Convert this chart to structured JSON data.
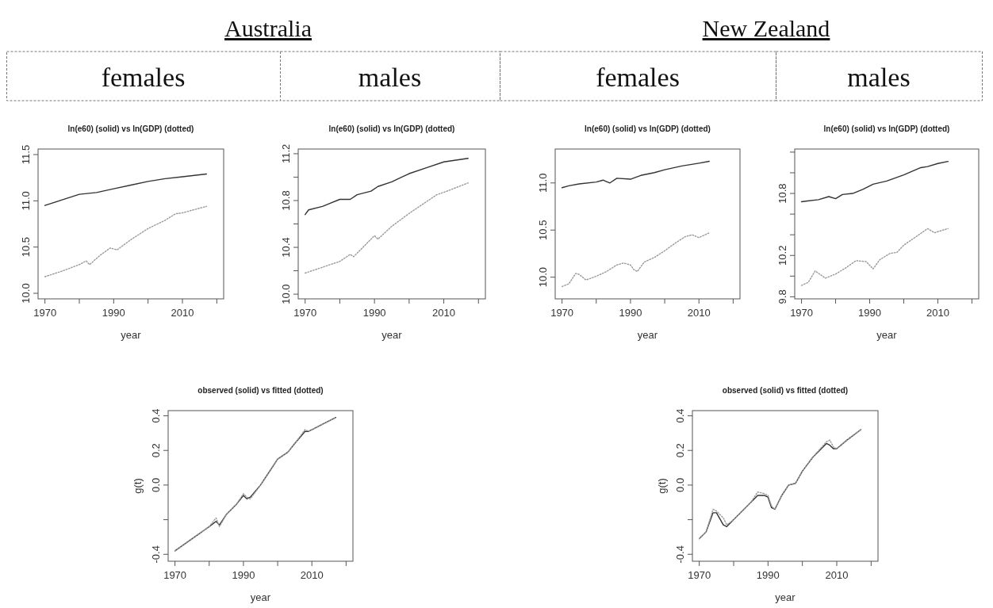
{
  "chart_data": [
    {
      "type": "other",
      "annotations": [
        "Australia",
        "New Zealand",
        "females",
        "males",
        "females",
        "males"
      ]
    },
    {
      "type": "line",
      "title": "ln(e60) (solid) vs ln(GDP) (dotted)",
      "xlabel": "year",
      "xlim": [
        1968,
        2022
      ],
      "xticks": [
        1970,
        {
          "value": 1980,
          "label": null
        },
        1990,
        {
          "value": 2000,
          "label": null
        },
        2010,
        {
          "value": 2020,
          "label": null
        }
      ],
      "ylim": [
        9.94,
        11.56
      ],
      "yticks": [
        {
          "value": 10,
          "label": "10.0"
        },
        10.5,
        {
          "value": 11,
          "label": "11.0"
        },
        11.5
      ],
      "series": [
        {
          "color": "#333333",
          "line_style": "solid",
          "x": [
            1970,
            1975,
            1980,
            1985,
            1990,
            1995,
            2000,
            2005,
            2010,
            2017
          ],
          "values": [
            10.95,
            11.01,
            11.07,
            11.09,
            11.13,
            11.17,
            11.21,
            11.24,
            11.26,
            11.29
          ]
        },
        {
          "color": "#999999",
          "line_style": "dotted",
          "x": [
            1970,
            1975,
            1980,
            1982,
            1983,
            1986,
            1989,
            1991,
            1995,
            2000,
            2005,
            2008,
            2010,
            2014,
            2017
          ],
          "values": [
            10.18,
            10.24,
            10.31,
            10.35,
            10.31,
            10.41,
            10.49,
            10.47,
            10.58,
            10.7,
            10.79,
            10.86,
            10.87,
            10.91,
            10.94
          ]
        }
      ]
    },
    {
      "type": "line",
      "title": "ln(e60) (solid) vs ln(GDP) (dotted)",
      "xlabel": "year",
      "xlim": [
        1968,
        2022
      ],
      "xticks": [
        1970,
        {
          "value": 1980,
          "label": null
        },
        1990,
        {
          "value": 2000,
          "label": null
        },
        2010,
        {
          "value": 2020,
          "label": null
        }
      ],
      "ylim": [
        9.96,
        11.24
      ],
      "yticks": [
        {
          "value": 10,
          "label": "10.0"
        },
        {
          "value": 10.2,
          "label": null
        },
        10.4,
        {
          "value": 10.6,
          "label": null
        },
        10.8,
        {
          "value": 11,
          "label": null
        },
        11.2
      ],
      "series": [
        {
          "color": "#333333",
          "line_style": "solid",
          "x": [
            1970,
            1971,
            1975,
            1980,
            1983,
            1985,
            1989,
            1991,
            1995,
            2000,
            2005,
            2010,
            2017
          ],
          "values": [
            10.68,
            10.72,
            10.75,
            10.81,
            10.81,
            10.85,
            10.88,
            10.92,
            10.96,
            11.03,
            11.08,
            11.13,
            11.16
          ]
        },
        {
          "color": "#999999",
          "line_style": "dotted",
          "x": [
            1970,
            1975,
            1980,
            1983,
            1984,
            1987,
            1990,
            1991,
            1995,
            2000,
            2005,
            2008,
            2010,
            2017
          ],
          "values": [
            10.18,
            10.23,
            10.28,
            10.34,
            10.32,
            10.41,
            10.5,
            10.47,
            10.58,
            10.69,
            10.79,
            10.85,
            10.87,
            10.95
          ]
        }
      ]
    },
    {
      "type": "line",
      "title": "ln(e60) (solid) vs ln(GDP) (dotted)",
      "xlabel": "year",
      "xlim": [
        1968,
        2022
      ],
      "xticks": [
        1970,
        {
          "value": 1980,
          "label": null
        },
        1990,
        {
          "value": 2000,
          "label": null
        },
        2010,
        {
          "value": 2020,
          "label": null
        }
      ],
      "ylim": [
        9.77,
        11.36
      ],
      "yticks": [
        {
          "value": 10,
          "label": "10.0"
        },
        10.5,
        {
          "value": 11,
          "label": "11.0"
        }
      ],
      "series": [
        {
          "color": "#333333",
          "line_style": "solid",
          "x": [
            1970,
            1972,
            1975,
            1980,
            1982,
            1984,
            1986,
            1990,
            1993,
            1997,
            2000,
            2005,
            2010,
            2013
          ],
          "values": [
            10.95,
            10.97,
            10.99,
            11.01,
            11.03,
            11.0,
            11.05,
            11.04,
            11.08,
            11.11,
            11.14,
            11.18,
            11.21,
            11.23
          ]
        },
        {
          "color": "#999999",
          "line_style": "dotted",
          "x": [
            1970,
            1972,
            1974,
            1975,
            1977,
            1980,
            1983,
            1986,
            1988,
            1990,
            1991,
            1992,
            1994,
            1997,
            2000,
            2003,
            2006,
            2008,
            2010,
            2013
          ],
          "values": [
            9.9,
            9.93,
            10.04,
            10.03,
            9.97,
            10.01,
            10.06,
            10.13,
            10.15,
            10.13,
            10.08,
            10.06,
            10.16,
            10.21,
            10.28,
            10.36,
            10.43,
            10.45,
            10.42,
            10.47
          ]
        }
      ]
    },
    {
      "type": "line",
      "title": "ln(e60) (solid) vs ln(GDP) (dotted)",
      "xlabel": "year",
      "xlim": [
        1968,
        2022
      ],
      "xticks": [
        1970,
        {
          "value": 1980,
          "label": null
        },
        1990,
        {
          "value": 2000,
          "label": null
        },
        2010,
        {
          "value": 2020,
          "label": null
        }
      ],
      "ylim": [
        9.78,
        11.23
      ],
      "yticks": [
        9.8,
        {
          "value": 10,
          "label": null
        },
        10.2,
        {
          "value": 10.4,
          "label": null
        },
        {
          "value": 10.6,
          "label": null
        },
        10.8,
        {
          "value": 11,
          "label": null
        },
        {
          "value": 11.2,
          "label": null
        }
      ],
      "series": [
        {
          "color": "#333333",
          "line_style": "solid",
          "x": [
            1970,
            1975,
            1978,
            1980,
            1982,
            1985,
            1988,
            1991,
            1995,
            2000,
            2005,
            2007,
            2010,
            2013
          ],
          "values": [
            10.72,
            10.74,
            10.77,
            10.75,
            10.79,
            10.8,
            10.84,
            10.89,
            10.92,
            10.98,
            11.05,
            11.06,
            11.09,
            11.11
          ]
        },
        {
          "color": "#999999",
          "line_style": "dotted",
          "x": [
            1970,
            1972,
            1974,
            1977,
            1980,
            1983,
            1986,
            1989,
            1991,
            1993,
            1996,
            1998,
            2000,
            2004,
            2007,
            2009,
            2013
          ],
          "values": [
            9.91,
            9.94,
            10.05,
            9.98,
            10.02,
            10.08,
            10.15,
            10.14,
            10.07,
            10.16,
            10.22,
            10.23,
            10.3,
            10.39,
            10.46,
            10.42,
            10.46
          ]
        }
      ]
    },
    {
      "type": "line",
      "title": "observed (solid) vs fitted (dotted)",
      "xlabel": "year",
      "ylabel": "g(t)",
      "xlim": [
        1968,
        2022
      ],
      "xticks": [
        1970,
        {
          "value": 1980,
          "label": null
        },
        1990,
        {
          "value": 2000,
          "label": null
        },
        2010,
        {
          "value": 2020,
          "label": null
        }
      ],
      "ylim": [
        -0.44,
        0.43
      ],
      "yticks": [
        -0.4,
        {
          "value": -0.2,
          "label": null
        },
        {
          "value": 0,
          "label": "0.0"
        },
        0.2,
        0.4
      ],
      "series": [
        {
          "color": "#333333",
          "line_style": "solid",
          "x": [
            1970,
            1975,
            1980,
            1982,
            1983,
            1985,
            1988,
            1990,
            1991,
            1992,
            1995,
            1998,
            2000,
            2003,
            2005,
            2008,
            2009,
            2010,
            2013,
            2017
          ],
          "values": [
            -0.38,
            -0.31,
            -0.24,
            -0.21,
            -0.23,
            -0.17,
            -0.11,
            -0.06,
            -0.08,
            -0.07,
            0.0,
            0.09,
            0.15,
            0.19,
            0.24,
            0.31,
            0.31,
            0.32,
            0.35,
            0.39
          ]
        },
        {
          "color": "#999999",
          "line_style": "dotted",
          "x": [
            1970,
            1975,
            1980,
            1982,
            1983,
            1985,
            1988,
            1990,
            1991,
            1992,
            1995,
            1998,
            2000,
            2003,
            2005,
            2008,
            2009,
            2010,
            2013,
            2017
          ],
          "values": [
            -0.38,
            -0.31,
            -0.24,
            -0.19,
            -0.24,
            -0.17,
            -0.11,
            -0.05,
            -0.07,
            -0.08,
            0.0,
            0.09,
            0.15,
            0.19,
            0.24,
            0.32,
            0.31,
            0.32,
            0.35,
            0.39
          ]
        }
      ]
    },
    {
      "type": "line",
      "title": "observed (solid) vs fitted (dotted)",
      "xlabel": "year",
      "ylabel": "g(t)",
      "xlim": [
        1968,
        2022
      ],
      "xticks": [
        1970,
        {
          "value": 1980,
          "label": null
        },
        1990,
        {
          "value": 2000,
          "label": null
        },
        2010,
        {
          "value": 2020,
          "label": null
        }
      ],
      "ylim": [
        -0.44,
        0.43
      ],
      "yticks": [
        -0.4,
        {
          "value": -0.2,
          "label": null
        },
        {
          "value": 0,
          "label": "0.0"
        },
        0.2,
        0.4
      ],
      "series": [
        {
          "color": "#333333",
          "line_style": "solid",
          "x": [
            1970,
            1972,
            1974,
            1975,
            1977,
            1978,
            1980,
            1983,
            1985,
            1987,
            1989,
            1990,
            1991,
            1992,
            1994,
            1996,
            1998,
            2000,
            2003,
            2007,
            2008,
            2009,
            2010,
            2013,
            2017
          ],
          "values": [
            -0.31,
            -0.27,
            -0.16,
            -0.16,
            -0.23,
            -0.24,
            -0.2,
            -0.14,
            -0.1,
            -0.06,
            -0.06,
            -0.07,
            -0.13,
            -0.14,
            -0.06,
            0.0,
            0.01,
            0.08,
            0.16,
            0.24,
            0.23,
            0.21,
            0.21,
            0.26,
            0.32
          ]
        },
        {
          "color": "#999999",
          "line_style": "dotted",
          "x": [
            1970,
            1972,
            1974,
            1975,
            1977,
            1978,
            1980,
            1983,
            1985,
            1987,
            1989,
            1990,
            1991,
            1992,
            1994,
            1996,
            1998,
            2000,
            2003,
            2007,
            2008,
            2009,
            2010,
            2013,
            2017
          ],
          "values": [
            -0.31,
            -0.27,
            -0.14,
            -0.15,
            -0.19,
            -0.23,
            -0.2,
            -0.14,
            -0.1,
            -0.04,
            -0.05,
            -0.06,
            -0.12,
            -0.14,
            -0.06,
            0.0,
            0.01,
            0.08,
            0.16,
            0.25,
            0.26,
            0.22,
            0.21,
            0.26,
            0.32
          ]
        }
      ]
    }
  ]
}
